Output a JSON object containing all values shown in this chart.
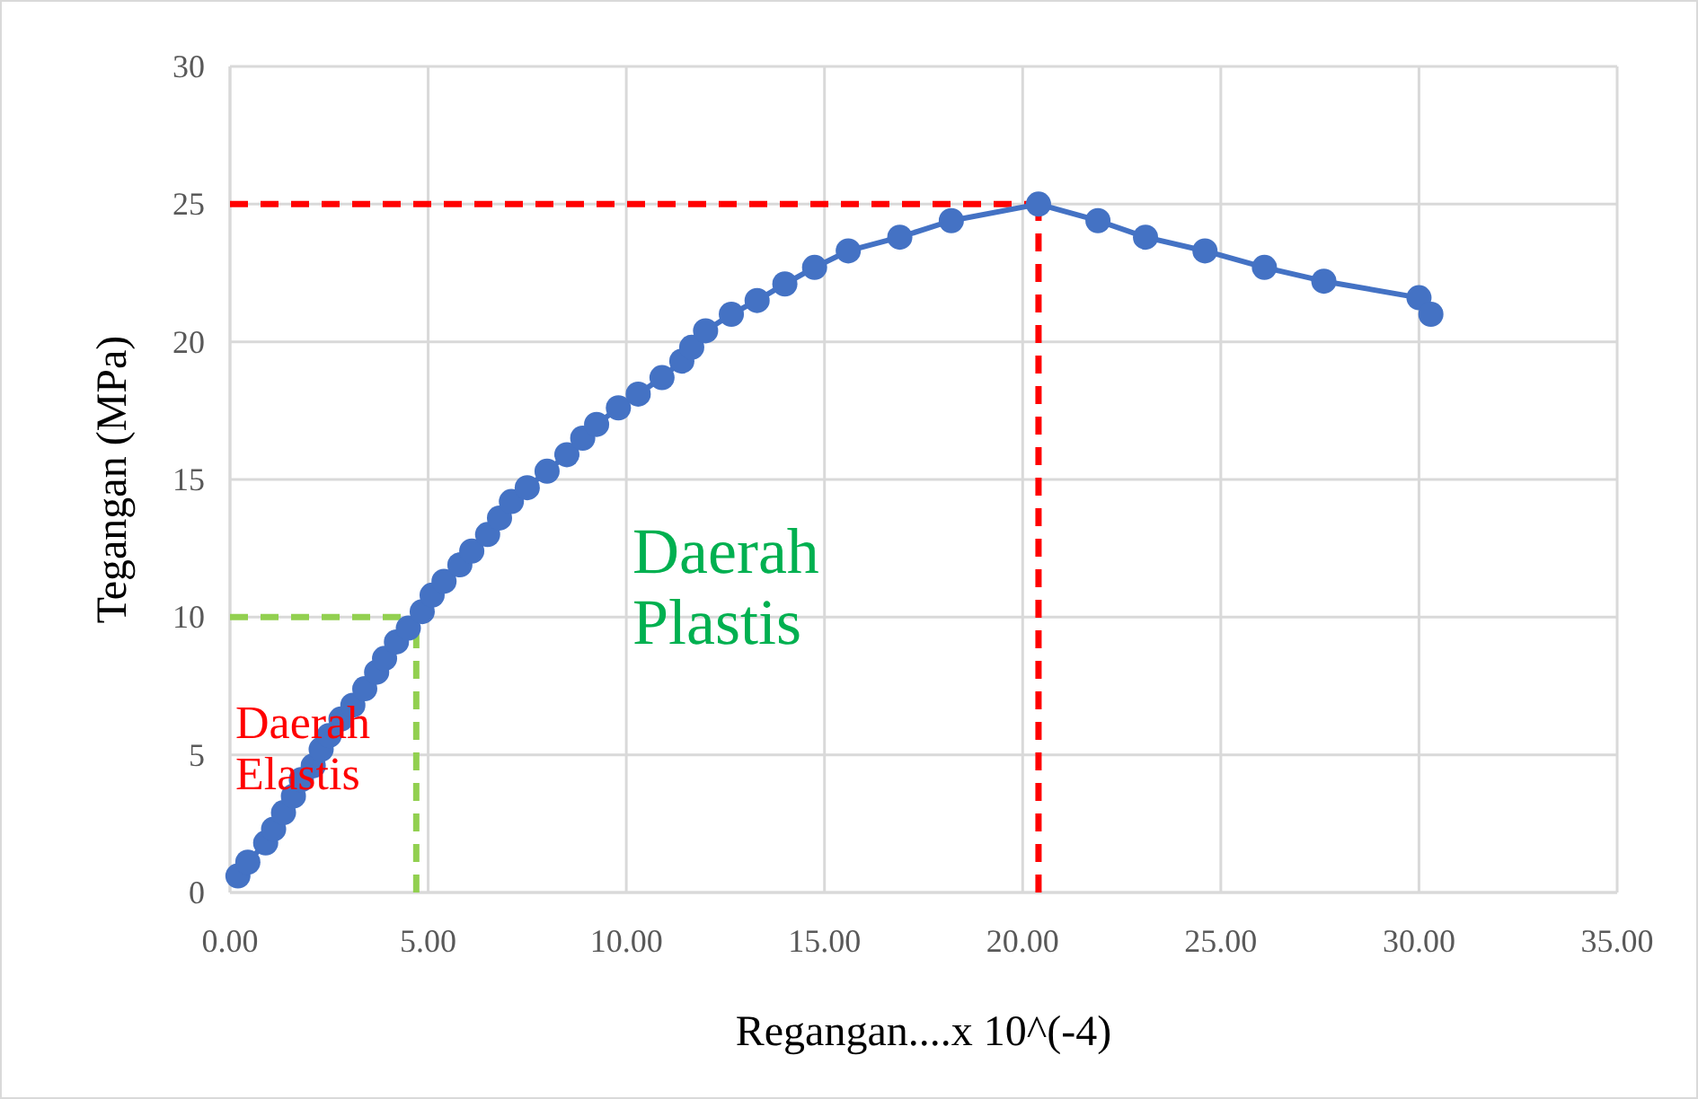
{
  "chart_data": {
    "type": "line",
    "xlabel": "Regangan....x 10^(-4)",
    "ylabel": "Tegangan (MPa)",
    "xlim": [
      0,
      35
    ],
    "xticks": [
      {
        "value": 0,
        "label": "0.00"
      },
      {
        "value": 5,
        "label": "5.00"
      },
      {
        "value": 10,
        "label": "10.00"
      },
      {
        "value": 15,
        "label": "15.00"
      },
      {
        "value": 20,
        "label": "20.00"
      },
      {
        "value": 25,
        "label": "25.00"
      },
      {
        "value": 30,
        "label": "30.00"
      },
      {
        "value": 35,
        "label": "35.00"
      }
    ],
    "ylim": [
      0,
      30
    ],
    "yticks": [
      0,
      5,
      10,
      15,
      20,
      25,
      30
    ],
    "grid": true,
    "marker": "circle",
    "line_style": "solid",
    "series": [
      {
        "color": "#4472c4",
        "x": [
          0.2,
          0.45,
          0.9,
          1.1,
          1.35,
          1.6,
          1.8,
          2.1,
          2.3,
          2.5,
          2.8,
          3.1,
          3.4,
          3.7,
          3.9,
          4.2,
          4.5,
          4.85,
          5.1,
          5.4,
          5.8,
          6.1,
          6.5,
          6.8,
          7.1,
          7.5,
          8.0,
          8.5,
          8.9,
          9.25,
          9.8,
          10.3,
          10.9,
          11.4,
          11.65,
          12.0,
          12.65,
          13.3,
          14.0,
          14.75,
          15.6,
          16.9,
          18.2,
          20.4,
          21.9,
          23.1,
          24.6,
          26.1,
          27.6,
          30.0,
          30.3
        ],
        "values": [
          0.6,
          1.1,
          1.8,
          2.3,
          2.9,
          3.5,
          4.1,
          4.6,
          5.2,
          5.7,
          6.3,
          6.8,
          7.4,
          8.0,
          8.5,
          9.1,
          9.6,
          10.2,
          10.8,
          11.3,
          11.9,
          12.4,
          13.0,
          13.6,
          14.2,
          14.7,
          15.3,
          15.9,
          16.5,
          17.0,
          17.6,
          18.1,
          18.7,
          19.3,
          19.8,
          20.4,
          21.0,
          21.5,
          22.1,
          22.7,
          23.3,
          23.8,
          24.4,
          25.0,
          24.4,
          23.8,
          23.3,
          22.7,
          22.2,
          21.6,
          21.0
        ]
      }
    ],
    "ref_lines": [
      {
        "axis": "y",
        "value": 25,
        "color": "#ff0000",
        "line_style": "dashed"
      },
      {
        "axis": "x",
        "value": 20.4,
        "color": "#ff0000",
        "line_style": "dashed"
      },
      {
        "axis": "y",
        "value": 10,
        "color": "#92d050",
        "line_style": "dashed"
      },
      {
        "axis": "x",
        "value": 4.7,
        "color": "#92d050",
        "line_style": "dashed"
      }
    ],
    "annotations": [
      "Daerah\nElastis",
      "Daerah\nPlastis"
    ]
  }
}
